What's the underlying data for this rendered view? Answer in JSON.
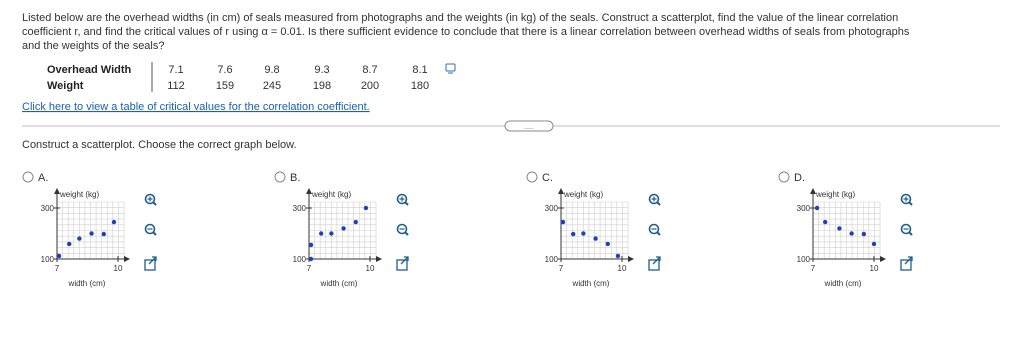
{
  "question": [
    "Listed below are the overhead widths (in cm) of seals measured from photographs and the weights (in kg) of the seals. Construct a scatterplot, find the value of the linear correlation",
    "coefficient r, and find the critical values of r using α = 0.01. Is there sufficient evidence to conclude that there is a linear correlation between overhead widths of seals from photographs",
    "and the weights of the seals?"
  ],
  "table": {
    "rows": [
      [
        "Overhead Width",
        "7.1",
        "7.6",
        "9.8",
        "9.3",
        "8.7",
        "8.1"
      ],
      [
        "Weight",
        "112",
        "159",
        "245",
        "198",
        "200",
        "180"
      ]
    ]
  },
  "link": "Click here to view a table of critical values for the correlation coefficient.",
  "prompt": "Construct a scatterplot. Choose the correct graph below.",
  "options": [
    {
      "label": "A.",
      "chart_data": {
        "type": "scatter",
        "y_label": "weight (kg)",
        "x_label": "width (cm)",
        "x": [
          7.1,
          7.6,
          8.1,
          8.7,
          9.3,
          9.8
        ],
        "y": [
          112,
          159,
          180,
          200,
          198,
          245
        ],
        "color": "#1f3fbf",
        "xlim": [
          7,
          10
        ],
        "ylim": [
          100,
          300
        ],
        "xticks": [
          7,
          10
        ],
        "yticks": [
          100,
          300
        ]
      }
    },
    {
      "label": "B.",
      "chart_data": {
        "type": "scatter",
        "y_label": "weight (kg)",
        "x_label": "width (cm)",
        "x": [
          7.1,
          7.1,
          7.6,
          8.1,
          8.7,
          9.3,
          9.8
        ],
        "y": [
          100,
          155,
          200,
          200,
          220,
          245,
          300
        ],
        "color": "#1f3fbf",
        "xlim": [
          7,
          10
        ],
        "ylim": [
          100,
          300
        ],
        "xticks": [
          7,
          10
        ],
        "yticks": [
          100,
          300
        ]
      }
    },
    {
      "label": "C.",
      "chart_data": {
        "type": "scatter",
        "y_label": "weight (kg)",
        "x_label": "width (cm)",
        "x": [
          7.1,
          7.6,
          8.1,
          8.7,
          9.3,
          9.8
        ],
        "y": [
          245,
          198,
          200,
          180,
          159,
          112
        ],
        "color": "#1f3fbf",
        "xlim": [
          7,
          10
        ],
        "ylim": [
          100,
          300
        ],
        "xticks": [
          7,
          10
        ],
        "yticks": [
          100,
          300
        ]
      }
    },
    {
      "label": "D.",
      "chart_data": {
        "type": "scatter",
        "y_label": "weight (kg)",
        "x_label": "width (cm)",
        "x": [
          7.2,
          7.6,
          8.3,
          8.9,
          9.5,
          10.0
        ],
        "y": [
          300,
          245,
          220,
          200,
          198,
          159
        ],
        "color": "#1f3fbf",
        "xlim": [
          7,
          10
        ],
        "ylim": [
          100,
          300
        ],
        "xticks": [
          7,
          10
        ],
        "yticks": [
          100,
          300
        ]
      }
    }
  ]
}
